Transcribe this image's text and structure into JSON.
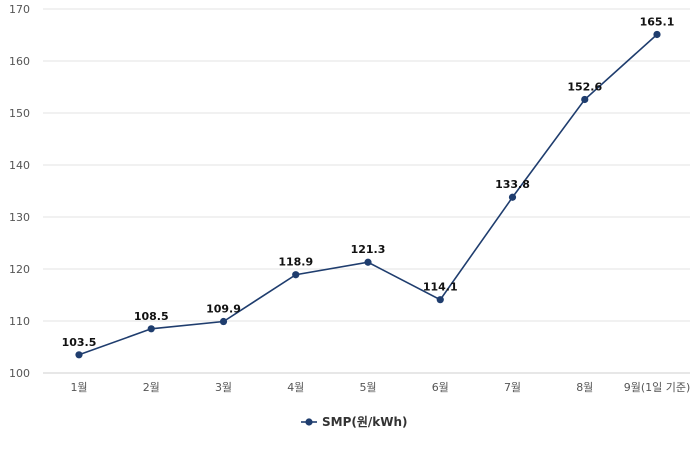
{
  "chart_data": {
    "type": "line",
    "title": "",
    "xlabel": "",
    "ylabel": "",
    "categories": [
      "1월",
      "2월",
      "3월",
      "4월",
      "5월",
      "6월",
      "7월",
      "8월",
      "9월(1일 기준)"
    ],
    "series": [
      {
        "name": "SMP(원/kWh)",
        "values": [
          103.5,
          108.5,
          109.9,
          118.9,
          121.3,
          114.1,
          133.8,
          152.6,
          165.1
        ],
        "labels": [
          "103.5",
          "108.5",
          "109.9",
          "118.9",
          "121.3",
          "114.1",
          "133.8",
          "152.6",
          "165.1"
        ],
        "color": "#1f3d6e"
      }
    ],
    "ylim": [
      100,
      170
    ],
    "yticks": [
      100,
      110,
      120,
      130,
      140,
      150,
      160,
      170
    ],
    "ytick_labels": [
      "100",
      "110",
      "120",
      "130",
      "140",
      "150",
      "160",
      "170"
    ],
    "grid": true,
    "legend_position": "bottom-center"
  }
}
